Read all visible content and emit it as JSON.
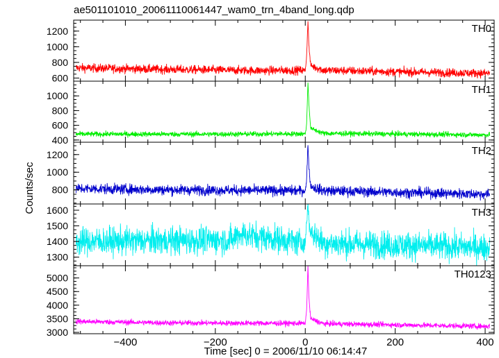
{
  "title": "ae501101010_20061110061447_wam0_trn_4band_long.qdp",
  "xlabel": "Time [sec] 0 = 2006/11/10 06:14:47",
  "ylabel": "Counts/sec",
  "chart_data": {
    "type": "line",
    "title": "ae501101010_20061110061447_wam0_trn_4band_long.qdp",
    "xlabel": "Time [sec] 0 = 2006/11/10 06:14:47",
    "ylabel": "Counts/sec",
    "xlim": [
      -515,
      420
    ],
    "x_ticks": [
      -400,
      -200,
      0,
      200,
      400
    ],
    "x_tick_labels": [
      "−400",
      "−200",
      "0",
      "200",
      "400"
    ],
    "grid": false,
    "panels": [
      {
        "name": "TH0",
        "color": "#ff0000",
        "ylim": [
          560,
          1340
        ],
        "yticks": [
          600,
          800,
          1000,
          1200
        ],
        "ytick_labels": [
          "600",
          "800",
          "1000",
          "1200"
        ],
        "series_approx": {
          "baseline_start": 735,
          "baseline_end": 660,
          "noise": 28,
          "peak_time": 6,
          "peak_value": 1340,
          "envelope_points": [
            [
              -510,
              730
            ],
            [
              -300,
              710
            ],
            [
              -100,
              695
            ],
            [
              0,
              700
            ],
            [
              3,
              880
            ],
            [
              6,
              1340
            ],
            [
              8,
              1020
            ],
            [
              12,
              760
            ],
            [
              40,
              700
            ],
            [
              200,
              680
            ],
            [
              410,
              660
            ]
          ]
        }
      },
      {
        "name": "TH1",
        "color": "#00ee00",
        "ylim": [
          370,
          1200
        ],
        "yticks": [
          400,
          600,
          800,
          1000
        ],
        "ytick_labels": [
          "400",
          "600",
          "800",
          "1000"
        ],
        "series_approx": {
          "baseline_start": 480,
          "baseline_end": 470,
          "noise": 18,
          "peak_time": 6,
          "peak_value": 1190,
          "envelope_points": [
            [
              -510,
              480
            ],
            [
              -200,
              480
            ],
            [
              0,
              485
            ],
            [
              3,
              610
            ],
            [
              6,
              1190
            ],
            [
              8,
              900
            ],
            [
              12,
              560
            ],
            [
              40,
              490
            ],
            [
              410,
              470
            ]
          ]
        }
      },
      {
        "name": "TH2",
        "color": "#0000cc",
        "ylim": [
          640,
          1340
        ],
        "yticks": [
          800,
          1000,
          1200
        ],
        "ytick_labels": [
          "800",
          "1000",
          "1200"
        ],
        "series_approx": {
          "baseline_start": 810,
          "baseline_end": 750,
          "noise": 30,
          "peak_time": 6,
          "peak_value": 1340,
          "envelope_points": [
            [
              -510,
              815
            ],
            [
              -300,
              800
            ],
            [
              0,
              790
            ],
            [
              3,
              900
            ],
            [
              6,
              1340
            ],
            [
              8,
              1060
            ],
            [
              12,
              840
            ],
            [
              40,
              790
            ],
            [
              410,
              750
            ]
          ]
        }
      },
      {
        "name": "TH3",
        "color": "#00eeee",
        "ylim": [
          1245,
          1640
        ],
        "yticks": [
          1300,
          1400,
          1500,
          1600
        ],
        "ytick_labels": [
          "1300",
          "1400",
          "1500",
          "1600"
        ],
        "series_approx": {
          "baseline_start": 1400,
          "baseline_end": 1360,
          "noise": 45,
          "peak_time": 6,
          "peak_value": 1640,
          "envelope_points": [
            [
              -510,
              1400
            ],
            [
              -160,
              1410
            ],
            [
              -150,
              1450
            ],
            [
              0,
              1390
            ],
            [
              6,
              1640
            ],
            [
              10,
              1470
            ],
            [
              40,
              1390
            ],
            [
              410,
              1360
            ]
          ]
        }
      },
      {
        "name": "TH0123",
        "color": "#ff00ff",
        "ylim": [
          2950,
          5450
        ],
        "yticks": [
          3000,
          3500,
          4000,
          4500,
          5000
        ],
        "ytick_labels": [
          "3000",
          "3500",
          "4000",
          "4500",
          "5000"
        ],
        "series_approx": {
          "baseline_start": 3380,
          "baseline_end": 3220,
          "noise": 50,
          "peak_time": 6,
          "peak_value": 5450,
          "envelope_points": [
            [
              -510,
              3400
            ],
            [
              -300,
              3350
            ],
            [
              0,
              3330
            ],
            [
              3,
              3800
            ],
            [
              6,
              5450
            ],
            [
              8,
              4300
            ],
            [
              12,
              3500
            ],
            [
              40,
              3320
            ],
            [
              410,
              3220
            ]
          ]
        }
      }
    ]
  }
}
